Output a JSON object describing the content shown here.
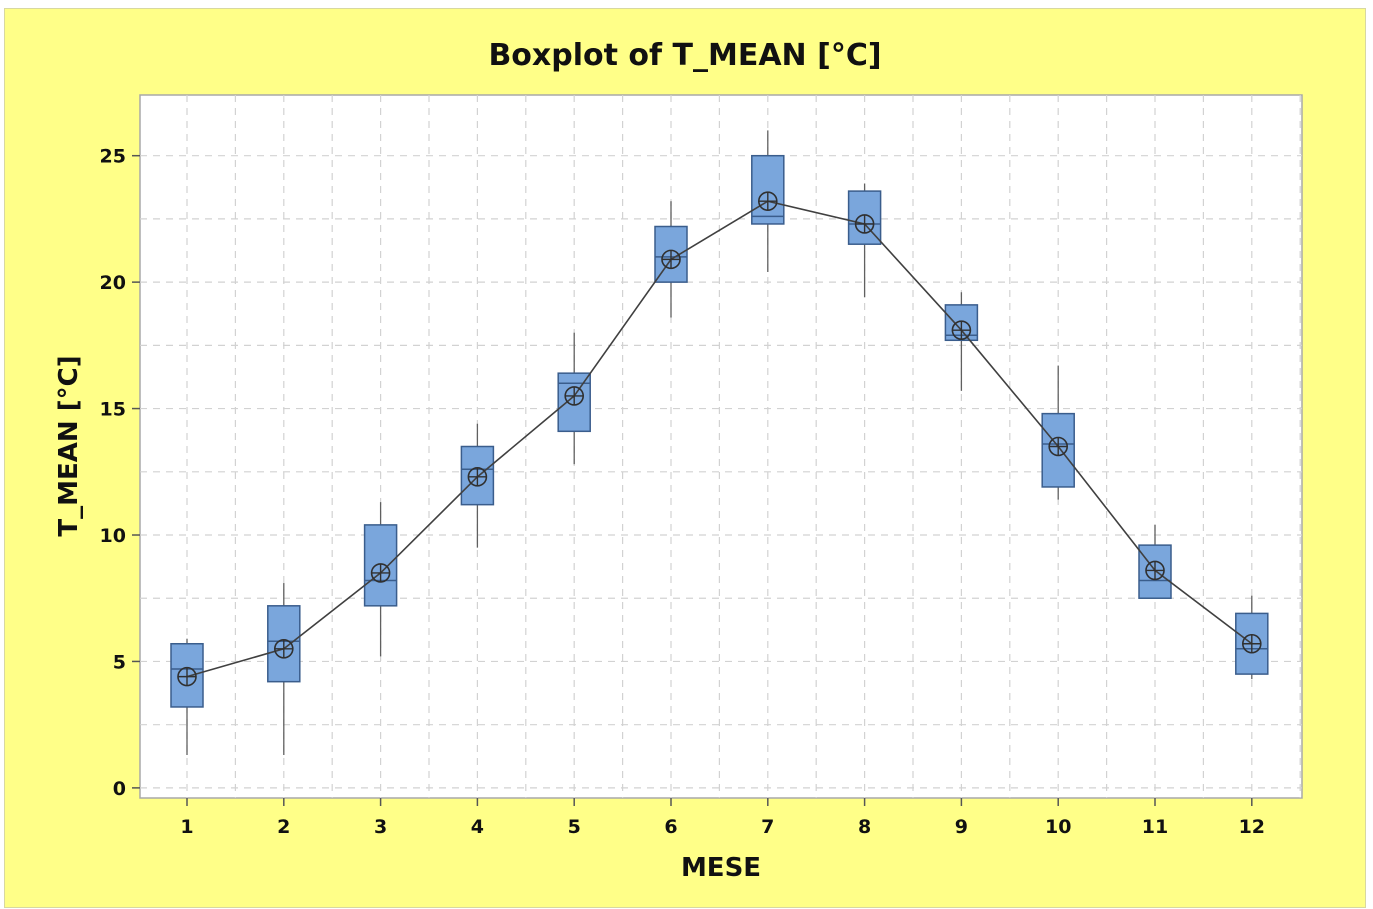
{
  "colors": {
    "background": "#ffff88",
    "plot_area": "#ffffff",
    "box_fill": "#7aa6dc",
    "box_stroke": "#3a5d8c",
    "mean_line": "#404040"
  },
  "chart_data": {
    "type": "boxplot",
    "title": "Boxplot of T_MEAN [°C]",
    "xlabel": "MESE",
    "ylabel": "T_MEAN [°C]",
    "ylim": [
      -0.4,
      27.4
    ],
    "yticks": [
      0,
      5,
      10,
      15,
      20,
      25
    ],
    "grid": true,
    "categories": [
      "1",
      "2",
      "3",
      "4",
      "5",
      "6",
      "7",
      "8",
      "9",
      "10",
      "11",
      "12"
    ],
    "boxes": [
      {
        "category": "1",
        "whisker_low": 1.3,
        "q1": 3.2,
        "median": 4.7,
        "q3": 5.7,
        "whisker_high": 5.9,
        "mean": 4.4
      },
      {
        "category": "2",
        "whisker_low": 1.3,
        "q1": 4.2,
        "median": 5.8,
        "q3": 7.2,
        "whisker_high": 8.1,
        "mean": 5.5
      },
      {
        "category": "3",
        "whisker_low": 5.2,
        "q1": 7.2,
        "median": 8.2,
        "q3": 10.4,
        "whisker_high": 11.3,
        "mean": 8.5
      },
      {
        "category": "4",
        "whisker_low": 9.5,
        "q1": 11.2,
        "median": 12.6,
        "q3": 13.5,
        "whisker_high": 14.4,
        "mean": 12.3
      },
      {
        "category": "5",
        "whisker_low": 12.8,
        "q1": 14.1,
        "median": 16.0,
        "q3": 16.4,
        "whisker_high": 18.0,
        "mean": 15.5
      },
      {
        "category": "6",
        "whisker_low": 18.6,
        "q1": 20.0,
        "median": 21.0,
        "q3": 22.2,
        "whisker_high": 23.2,
        "mean": 20.9
      },
      {
        "category": "7",
        "whisker_low": 20.4,
        "q1": 22.3,
        "median": 22.6,
        "q3": 25.0,
        "whisker_high": 26.0,
        "mean": 23.2
      },
      {
        "category": "8",
        "whisker_low": 19.4,
        "q1": 21.5,
        "median": 22.3,
        "q3": 23.6,
        "whisker_high": 23.9,
        "mean": 22.3
      },
      {
        "category": "9",
        "whisker_low": 15.7,
        "q1": 17.7,
        "median": 17.9,
        "q3": 19.1,
        "whisker_high": 19.6,
        "mean": 18.1
      },
      {
        "category": "10",
        "whisker_low": 11.4,
        "q1": 11.9,
        "median": 13.6,
        "q3": 14.8,
        "whisker_high": 16.7,
        "mean": 13.5
      },
      {
        "category": "11",
        "whisker_low": 7.5,
        "q1": 7.5,
        "median": 8.2,
        "q3": 9.6,
        "whisker_high": 10.4,
        "mean": 8.6
      },
      {
        "category": "12",
        "whisker_low": 4.3,
        "q1": 4.5,
        "median": 5.5,
        "q3": 6.9,
        "whisker_high": 7.6,
        "mean": 5.7
      }
    ],
    "mean_connect_line": true
  }
}
